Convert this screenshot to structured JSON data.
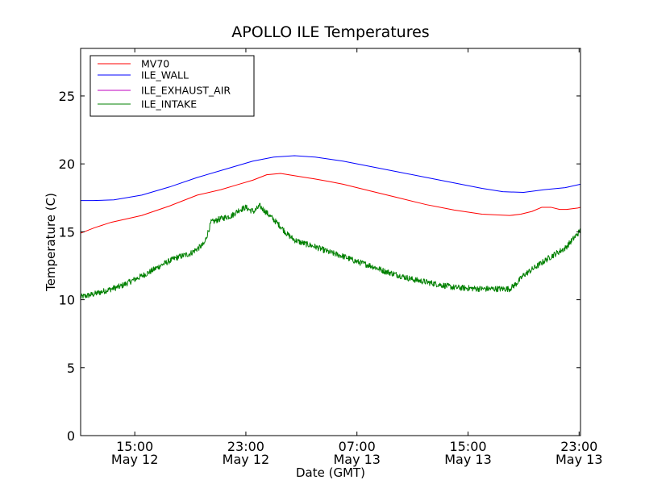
{
  "chart_data": {
    "type": "line",
    "title": "APOLLO ILE Temperatures",
    "xlabel": "Date (GMT)",
    "ylabel": "Temperature (C)",
    "xlim": [
      11.1,
      47.1
    ],
    "ylim": [
      0,
      28.5
    ],
    "grid": false,
    "legend_position": "top-left",
    "x_unit": "hours since 00:00 May 12 GMT",
    "x_ticks": [
      {
        "value": 15,
        "time": "15:00",
        "date": "May 12"
      },
      {
        "value": 23,
        "time": "23:00",
        "date": "May 12"
      },
      {
        "value": 31,
        "time": "07:00",
        "date": "May 13"
      },
      {
        "value": 39,
        "time": "15:00",
        "date": "May 13"
      },
      {
        "value": 47,
        "time": "23:00",
        "date": "May 13"
      }
    ],
    "y_ticks": [
      0,
      5,
      10,
      15,
      20,
      25
    ],
    "series": [
      {
        "name": "MV70",
        "color": "#ff0000",
        "x": [
          11.1,
          12.1,
          13.3,
          15.5,
          17.5,
          19.5,
          21.2,
          22.5,
          23.5,
          24.5,
          25.5,
          26.7,
          27.9,
          29.0,
          30.0,
          32.0,
          34.0,
          36.0,
          38.0,
          40.0,
          42.0,
          42.8,
          43.6,
          44.3,
          45.0,
          45.6,
          46.1,
          46.9,
          47.1
        ],
        "values": [
          14.9,
          15.3,
          15.7,
          16.2,
          16.9,
          17.7,
          18.1,
          18.5,
          18.8,
          19.2,
          19.3,
          19.1,
          18.9,
          18.7,
          18.5,
          18.0,
          17.5,
          17.0,
          16.6,
          16.3,
          16.2,
          16.3,
          16.5,
          16.8,
          16.8,
          16.65,
          16.65,
          16.75,
          16.8
        ]
      },
      {
        "name": "ILE_WALL",
        "color": "#0000ff",
        "x": [
          11.1,
          12.0,
          13.5,
          15.5,
          17.5,
          19.5,
          21.5,
          23.5,
          25.0,
          26.5,
          28.0,
          30.0,
          32.0,
          34.0,
          36.0,
          38.0,
          40.0,
          41.5,
          43.0,
          44.5,
          46.0,
          47.1
        ],
        "values": [
          17.3,
          17.3,
          17.35,
          17.7,
          18.3,
          19.0,
          19.6,
          20.2,
          20.5,
          20.6,
          20.5,
          20.2,
          19.8,
          19.4,
          19.0,
          18.6,
          18.2,
          17.95,
          17.9,
          18.1,
          18.25,
          18.5
        ]
      },
      {
        "name": "ILE_EXHAUST_AIR",
        "color": "#bf00bf",
        "x": [],
        "values": []
      },
      {
        "name": "ILE_INTAKE",
        "color": "#008000",
        "noise": 0.22,
        "x": [
          11.1,
          12.0,
          13.0,
          14.0,
          15.0,
          16.0,
          17.0,
          18.0,
          19.0,
          20.0,
          20.5,
          20.8,
          21.0,
          22.0,
          22.5,
          23.0,
          23.3,
          23.6,
          24.0,
          24.5,
          25.0,
          25.5,
          26.0,
          26.5,
          27.0,
          28.0,
          29.0,
          30.0,
          31.0,
          32.0,
          33.0,
          34.0,
          35.0,
          36.0,
          37.0,
          38.0,
          39.0,
          40.0,
          41.0,
          42.0,
          42.5,
          43.0,
          44.0,
          45.0,
          46.0,
          47.1
        ],
        "values": [
          10.2,
          10.4,
          10.7,
          11.0,
          11.5,
          12.0,
          12.6,
          13.1,
          13.4,
          14.1,
          15.7,
          15.8,
          15.9,
          16.2,
          16.6,
          16.8,
          16.6,
          16.5,
          16.9,
          16.4,
          15.9,
          15.4,
          14.8,
          14.4,
          14.2,
          13.9,
          13.5,
          13.2,
          12.8,
          12.5,
          12.1,
          11.8,
          11.5,
          11.3,
          11.1,
          10.9,
          10.85,
          10.8,
          10.8,
          10.8,
          11.2,
          11.8,
          12.5,
          13.2,
          13.8,
          15.1
        ]
      }
    ]
  }
}
